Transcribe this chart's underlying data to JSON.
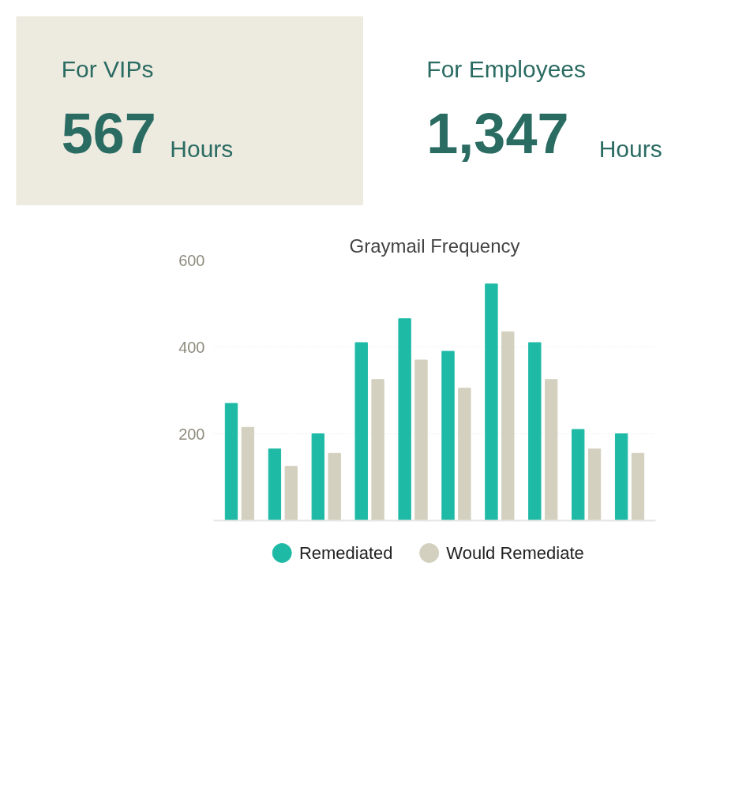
{
  "chart_data": [
    {
      "type": "other",
      "title": "For VIPs",
      "annotations": [
        "567",
        "Hours"
      ],
      "color": "#edeae0"
    },
    {
      "type": "other",
      "title": "For Employees",
      "annotations": [
        "1,347",
        "Hours"
      ],
      "color": "#ffffff"
    },
    {
      "type": "bar",
      "title": "Graymail Frequency",
      "categories": [
        null,
        null,
        null,
        null,
        null,
        null,
        null,
        null,
        null,
        null
      ],
      "series": [
        {
          "name": "Remediated",
          "color": "#1fbaa6",
          "values": [
            270,
            165,
            200,
            410,
            465,
            390,
            545,
            410,
            210,
            200
          ]
        },
        {
          "name": "Would Remediate",
          "color": "#d4d0bf",
          "values": [
            215,
            125,
            155,
            325,
            370,
            305,
            435,
            325,
            165,
            155
          ]
        }
      ],
      "ylim": [
        0,
        600
      ],
      "yticks": [
        200,
        400,
        600
      ],
      "grid": "y",
      "legend": "bottom"
    }
  ]
}
